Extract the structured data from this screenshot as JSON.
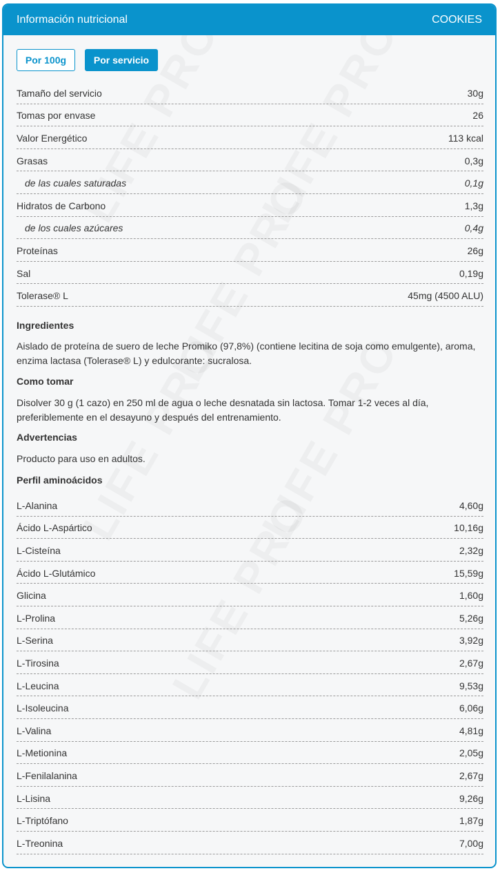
{
  "header": {
    "title": "Información nutricional",
    "flavor": "COOKIES"
  },
  "toggle": {
    "per_100g": "Por 100g",
    "per_serving": "Por servicio",
    "active": "per_serving"
  },
  "accent_color": "#0a93cc",
  "nutrition": [
    {
      "label": "Tamaño del servicio",
      "value": "30g",
      "sub": false
    },
    {
      "label": "Tomas por envase",
      "value": "26",
      "sub": false
    },
    {
      "label": "Valor Energético",
      "value": "113 kcal",
      "sub": false
    },
    {
      "label": "Grasas",
      "value": "0,3g",
      "sub": false
    },
    {
      "label": "de las cuales saturadas",
      "value": "0,1g",
      "sub": true
    },
    {
      "label": "Hidratos de Carbono",
      "value": "1,3g",
      "sub": false
    },
    {
      "label": "de los cuales azúcares",
      "value": "0,4g",
      "sub": true
    },
    {
      "label": "Proteínas",
      "value": "26g",
      "sub": false
    },
    {
      "label": "Sal",
      "value": "0,19g",
      "sub": false
    },
    {
      "label": "Tolerase® L",
      "value": "45mg (4500 ALU)",
      "sub": false
    }
  ],
  "sections": {
    "ingredients_title": "Ingredientes",
    "ingredients_text": "Aislado de proteína de suero de leche Promiko (97,8%) (contiene lecitina de soja como emulgente), aroma, enzima lactasa (Tolerase® L) y edulcorante: sucralosa.",
    "howto_title": "Como tomar",
    "howto_text": "Disolver 30 g (1 cazo) en 250 ml de agua o leche desnatada sin lactosa. Tomar 1-2 veces al día, preferiblemente en el desayuno y después del entrenamiento.",
    "warnings_title": "Advertencias",
    "warnings_text": "Producto para uso en adultos.",
    "amino_title": "Perfil aminoácidos"
  },
  "amino": [
    {
      "label": "L-Alanina",
      "value": "4,60g"
    },
    {
      "label": "Ácido L-Aspártico",
      "value": "10,16g"
    },
    {
      "label": "L-Cisteína",
      "value": "2,32g"
    },
    {
      "label": "Ácido L-Glutámico",
      "value": "15,59g"
    },
    {
      "label": "Glicina",
      "value": "1,60g"
    },
    {
      "label": "L-Prolina",
      "value": "5,26g"
    },
    {
      "label": "L-Serina",
      "value": "3,92g"
    },
    {
      "label": "L-Tirosina",
      "value": "2,67g"
    },
    {
      "label": "L-Leucina",
      "value": "9,53g"
    },
    {
      "label": "L-Isoleucina",
      "value": "6,06g"
    },
    {
      "label": "L-Valina",
      "value": "4,81g"
    },
    {
      "label": "L-Metionina",
      "value": "2,05g"
    },
    {
      "label": "L-Fenilalanina",
      "value": "2,67g"
    },
    {
      "label": "L-Lisina",
      "value": "9,26g"
    },
    {
      "label": "L-Triptófano",
      "value": "1,87g"
    },
    {
      "label": "L-Treonina",
      "value": "7,00g"
    }
  ],
  "watermark": "LIFE PRO NUTRITION"
}
